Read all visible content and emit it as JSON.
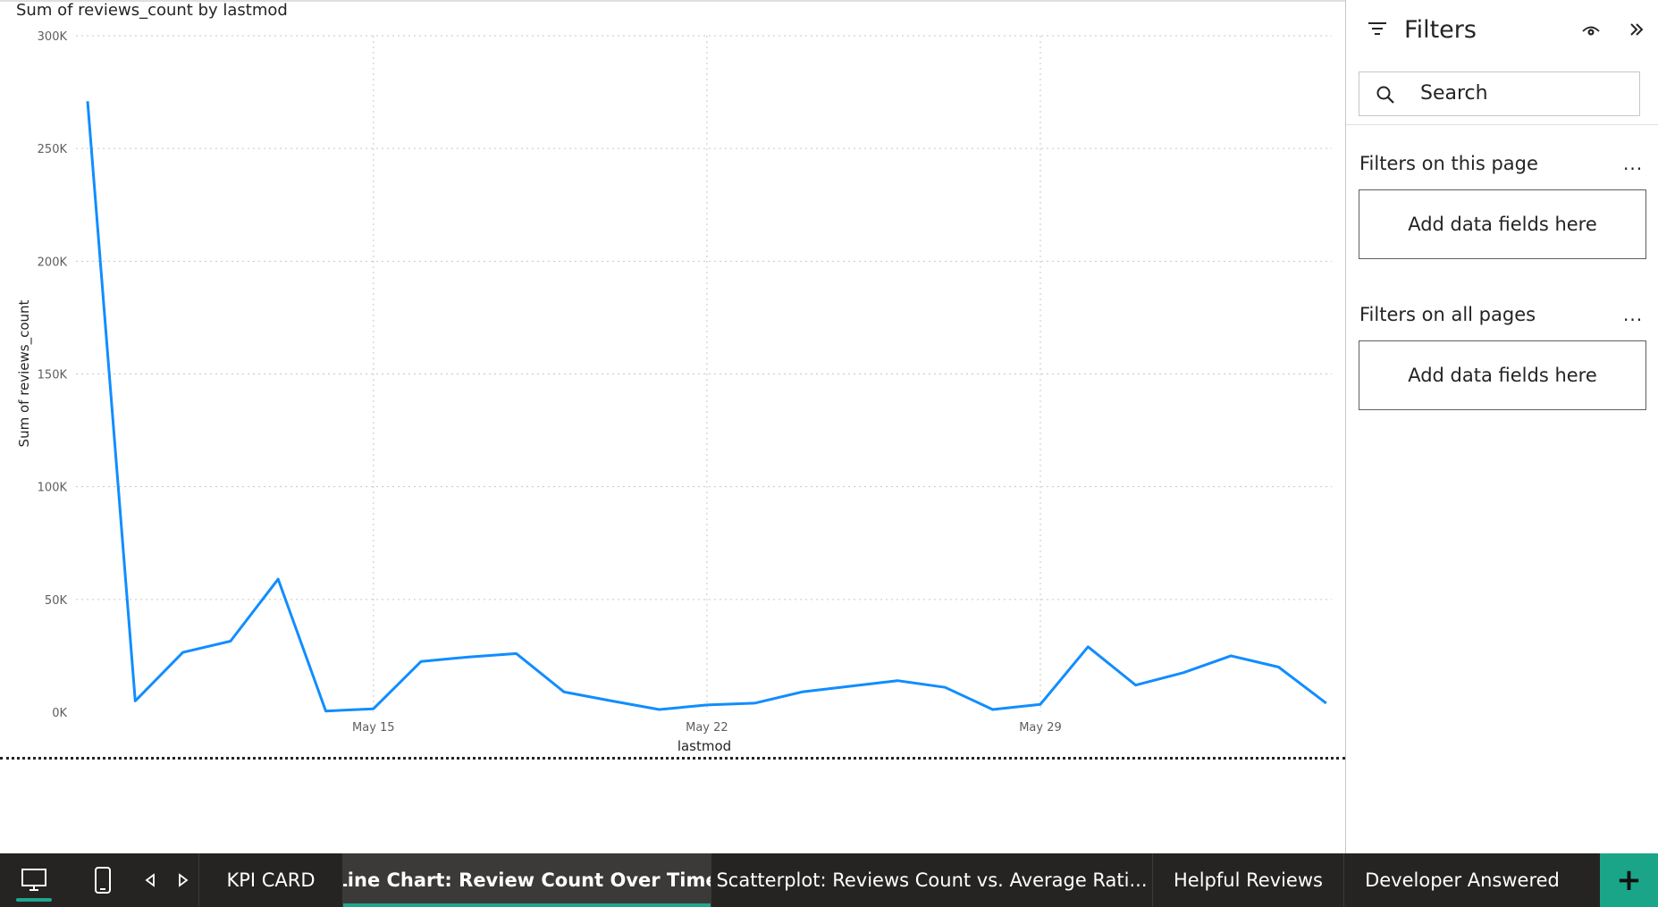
{
  "chart_data": {
    "type": "line",
    "title": "Sum of reviews_count by lastmod",
    "xlabel": "lastmod",
    "ylabel": "Sum of reviews_count",
    "ylim": [
      0,
      300000
    ],
    "yticks": [
      {
        "value": 0,
        "label": "0K"
      },
      {
        "value": 50000,
        "label": "50K"
      },
      {
        "value": 100000,
        "label": "100K"
      },
      {
        "value": 150000,
        "label": "150K"
      },
      {
        "value": 200000,
        "label": "200K"
      },
      {
        "value": 250000,
        "label": "250K"
      },
      {
        "value": 300000,
        "label": "300K"
      }
    ],
    "xticks": [
      {
        "date": "May 15",
        "label": "May 15"
      },
      {
        "date": "May 22",
        "label": "May 22"
      },
      {
        "date": "May 29",
        "label": "May 29"
      }
    ],
    "grid": true,
    "line_color": "#118DFF",
    "x": [
      "May 9",
      "May 10",
      "May 11",
      "May 12",
      "May 13",
      "May 14",
      "May 15",
      "May 16",
      "May 17",
      "May 18",
      "May 19",
      "May 20",
      "May 21",
      "May 22",
      "May 23",
      "May 24",
      "May 25",
      "May 26",
      "May 27",
      "May 28",
      "May 29",
      "May 30",
      "May 31",
      "Jun 1",
      "Jun 2",
      "Jun 3",
      "Jun 4"
    ],
    "values": [
      271000,
      5000,
      26500,
      31500,
      59000,
      500,
      1500,
      22500,
      24500,
      26000,
      9000,
      5000,
      1200,
      3200,
      4000,
      9000,
      11500,
      14000,
      11000,
      1200,
      3500,
      29000,
      12000,
      17500,
      25000,
      20000,
      4000
    ]
  },
  "filters": {
    "title": "Filters",
    "search_placeholder": "Search",
    "page_section": "Filters on this page",
    "all_section": "Filters on all pages",
    "more": "...",
    "drop_text": "Add data fields here"
  },
  "tabs": [
    {
      "label": "KPI CARD",
      "active": false
    },
    {
      "label": "Line Chart: Review Count Over Time",
      "active": true
    },
    {
      "label": "Scatterplot: Reviews Count vs. Average Rati...",
      "active": false
    },
    {
      "label": "Helpful Reviews",
      "active": false
    },
    {
      "label": "Developer Answered",
      "active": false
    }
  ],
  "tab_add": "+",
  "icons": {
    "desktop": "desktop-icon",
    "mobile": "mobile-icon",
    "prev": "triangle-left-icon",
    "next": "triangle-right-icon",
    "filter": "filter-icon",
    "eye": "eye-icon",
    "collapse": "chevron-double-right-icon",
    "search": "search-icon"
  }
}
